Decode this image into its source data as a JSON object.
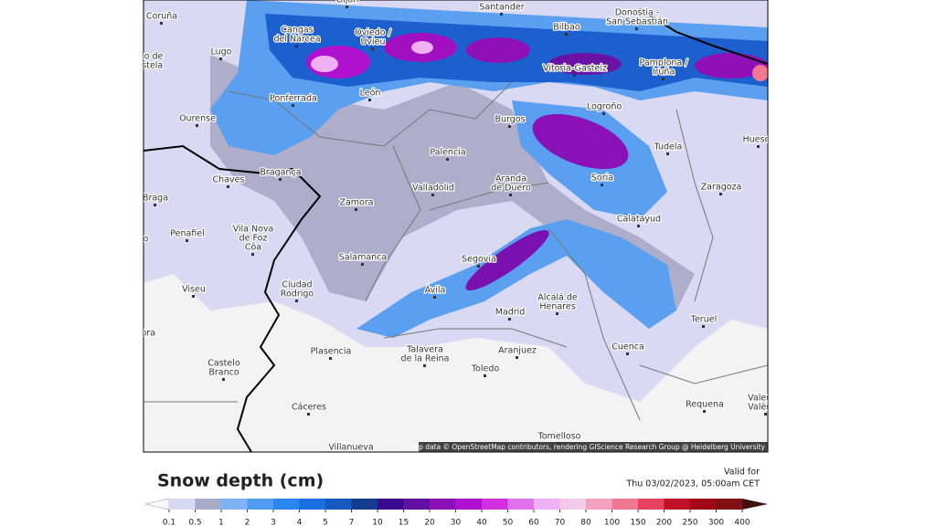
{
  "legend": {
    "title": "Snow depth (cm)",
    "valid_for": [
      "Valid for",
      "Thu 03/02/2023, 05:00am CET"
    ],
    "ticks": [
      0.1,
      0.5,
      1,
      2,
      3,
      4,
      5,
      7,
      10,
      15,
      20,
      30,
      40,
      50,
      60,
      70,
      80,
      100,
      150,
      200,
      250,
      300,
      400
    ]
  },
  "attribution": "Map data © OpenStreetMap contributors, rendering GIScience Research Group @ Heidelberg University",
  "cities": [
    [
      "Coruña"
    ],
    [
      "Gijón"
    ],
    [
      "Santander"
    ],
    [
      "Donostia -",
      "San Sebastián"
    ],
    [
      "Bilbao"
    ],
    [
      "Cangas",
      "del Narcea"
    ],
    [
      "Oviedo /",
      "Uvieu"
    ],
    [
      "Lugo"
    ],
    [
      "Santiago de",
      "Compostela"
    ],
    [
      "Vitoria-Gasteiz"
    ],
    [
      "Pamplona /",
      "Iruña"
    ],
    [
      "Ponferrada"
    ],
    [
      "León"
    ],
    [
      "Logroño"
    ],
    [
      "Ourense"
    ],
    [
      "Burgos"
    ],
    [
      "Huesca"
    ],
    [
      "Tudela"
    ],
    [
      "Palencia"
    ],
    [
      "Bragança"
    ],
    [
      "Chaves"
    ],
    [
      "Soria"
    ],
    [
      "Aranda",
      "de Duero"
    ],
    [
      "Valladolid"
    ],
    [
      "Zaragoza"
    ],
    [
      "Braga"
    ],
    [
      "Zamora"
    ],
    [
      "Calatayud"
    ],
    [
      "Vila Nova",
      "de Foz",
      "Côa"
    ],
    [
      "Penafiel"
    ],
    [
      "Porto"
    ],
    [
      "Salamanca"
    ],
    [
      "Segovia"
    ],
    [
      "Ciudad",
      "Rodrigo"
    ],
    [
      "Viseu"
    ],
    [
      "Ávila"
    ],
    [
      "Alcalá de",
      "Henares"
    ],
    [
      "Madrid"
    ],
    [
      "Teruel"
    ],
    [
      "Coimbra"
    ],
    [
      "Cuenca"
    ],
    [
      "Plasencia"
    ],
    [
      "Talavera",
      "de la Reina"
    ],
    [
      "Aranjuez"
    ],
    [
      "Castelo",
      "Branco"
    ],
    [
      "Toledo"
    ],
    [
      "Valencia",
      "València"
    ],
    [
      "Requena"
    ],
    [
      "Cáceres"
    ],
    [
      "Tomelloso"
    ],
    [
      "Villanueva"
    ]
  ]
}
